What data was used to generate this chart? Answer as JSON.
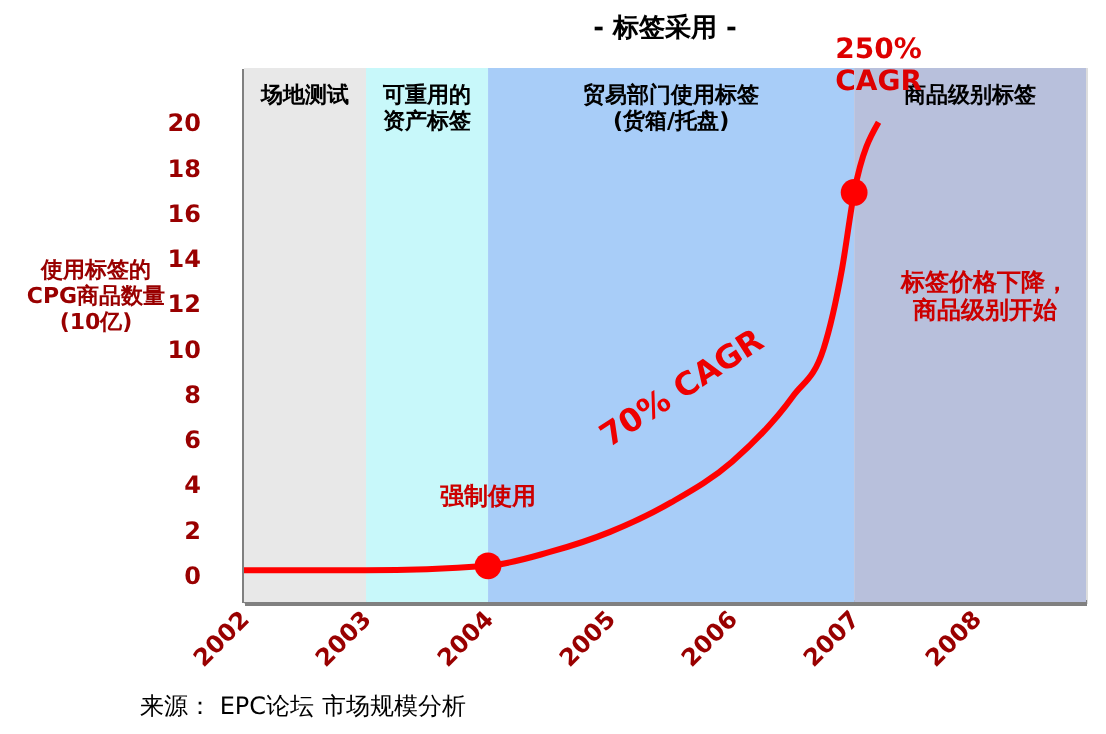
{
  "chart_data": {
    "type": "line",
    "title": "- 标签采用 -",
    "ylabel": "使用标签的\nCPG商品数量\n(10亿)",
    "x": [
      2002,
      2003,
      2004,
      2004.5,
      2005,
      2005.5,
      2006,
      2006.5,
      2006.75,
      2006.9,
      2007,
      2007.2
    ],
    "series": [
      {
        "color": "#ff0000",
        "values": [
          0.2,
          0.2,
          0.4,
          1.0,
          1.9,
          3.2,
          5.0,
          7.9,
          10.0,
          13.5,
          16.9,
          20.0
        ]
      },
      {
        "type": "scatter",
        "color": "#ff0000",
        "marker": "circle",
        "x": [
          2004,
          2007
        ],
        "values": [
          0.4,
          16.9
        ]
      }
    ],
    "xlim": [
      2002,
      2008.9
    ],
    "xticks": [
      2002,
      2003,
      2004,
      2005,
      2006,
      2007,
      2008
    ],
    "ylim": [
      -1.2,
      22.4
    ],
    "yticks": [
      0,
      2,
      4,
      6,
      8,
      10,
      12,
      14,
      16,
      18,
      20
    ],
    "bands": [
      {
        "axis": "x",
        "from": 2002,
        "to": 2003,
        "label": "场地测试",
        "color": "#e8e8e8"
      },
      {
        "axis": "x",
        "from": 2003,
        "to": 2004,
        "label": "可重用的资产标签",
        "color": "#c8f8fa"
      },
      {
        "axis": "x",
        "from": 2004,
        "to": 2007,
        "label": "贸易部门使用标签\n(货箱/托盘)",
        "color": "#a8cdf8"
      },
      {
        "axis": "x",
        "from": 2007,
        "to": 2008.9,
        "label": "商品级别标签",
        "color": "#b8c0dc"
      }
    ],
    "annotations": [
      "70% CAGR",
      {
        "text": "强制使用",
        "x": 2004.0,
        "y": 3.5
      },
      {
        "text": "250%\nCAGR",
        "x": 2007.2,
        "y": 20.0
      },
      "标签价格下降，商品级别开始",
      "来源： EPC论坛 市场规模分析"
    ]
  }
}
